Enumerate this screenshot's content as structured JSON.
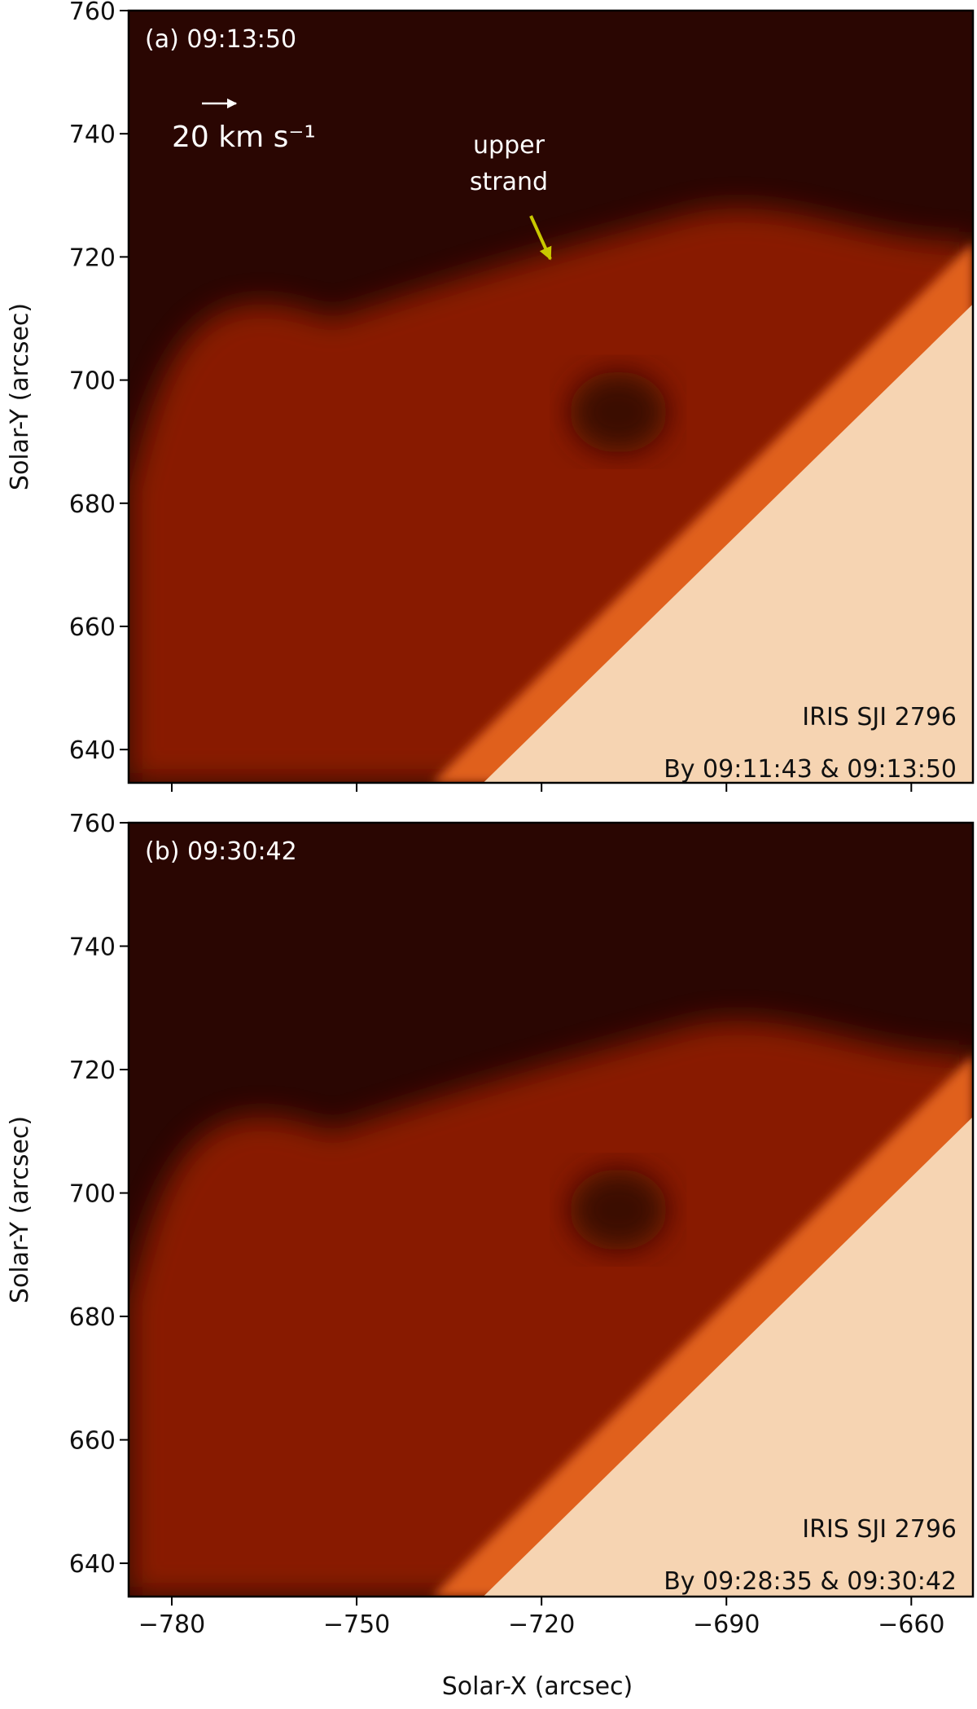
{
  "chart_data": {
    "type": "image",
    "xlabel": "Solar-X (arcsec)",
    "xlim": [
      -787,
      -650
    ],
    "xticks": [
      {
        "value": -780,
        "label": "−780"
      },
      {
        "value": -750,
        "label": "−750"
      },
      {
        "value": -720,
        "label": "−720"
      },
      {
        "value": -690,
        "label": "−690"
      },
      {
        "value": -660,
        "label": "−660"
      }
    ],
    "panels": [
      {
        "title": "(a) 09:13:50",
        "ylabel": "Solar-Y (arcsec)",
        "ylim": [
          634.6,
          760
        ],
        "yticks": [
          640,
          660,
          680,
          700,
          720,
          740,
          760
        ],
        "instrument": "IRIS SJI 2796",
        "method": "By 09:11:43 & 09:13:50",
        "scale_label": "20 km s⁻¹",
        "annotation": [
          "upper",
          "strand"
        ]
      },
      {
        "title": "(b) 09:30:42",
        "ylabel": "Solar-Y (arcsec)",
        "ylim": [
          634.6,
          760
        ],
        "yticks": [
          640,
          660,
          680,
          700,
          720,
          740,
          760
        ],
        "instrument": "IRIS SJI 2796",
        "method": "By 09:28:35 & 09:30:42"
      }
    ]
  }
}
